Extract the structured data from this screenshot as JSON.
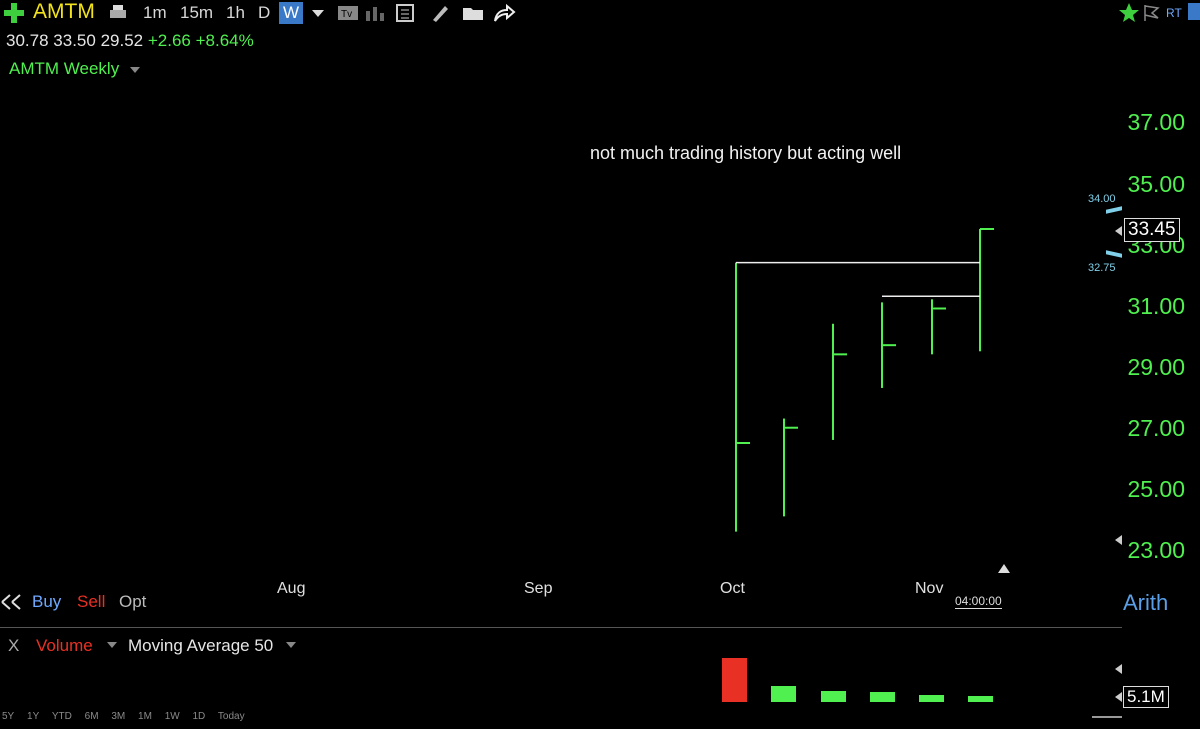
{
  "toolbar": {
    "add_icon": "plus-icon",
    "symbol": "AMTM",
    "timeframes": [
      "1m",
      "15m",
      "1h",
      "D",
      "W"
    ],
    "active_timeframe": "W",
    "rt_label": "RT"
  },
  "quote": {
    "open": "30.78",
    "high": "33.50",
    "low": "29.52",
    "change": "+2.66",
    "change_pct": "+8.64%"
  },
  "chart": {
    "title": "AMTM Weekly",
    "annotation": "not much trading history but acting well",
    "price_labels": [
      "37.00",
      "35.00",
      "33.00",
      "31.00",
      "29.00",
      "27.00",
      "25.00",
      "23.00"
    ],
    "last_price": "33.45",
    "upper_marker": "34.00",
    "lower_marker": "32.75",
    "months": [
      "Aug",
      "Sep",
      "Oct",
      "Nov"
    ],
    "countdown": "04:00:00",
    "scale_label": "Arith",
    "colors": {
      "up": "#4ff04f",
      "down": "#e83024",
      "ticker": "#f2e31c",
      "accent": "#3a78c8"
    }
  },
  "chart_data": {
    "type": "ohlc",
    "x": [
      "Oct wk1",
      "Oct wk2",
      "Oct wk3",
      "Oct wk4",
      "Nov wk1",
      "Nov wk2"
    ],
    "open": [
      null,
      null,
      null,
      null,
      null,
      null
    ],
    "high": [
      32.4,
      27.3,
      30.4,
      31.1,
      31.2,
      33.5
    ],
    "low": [
      23.6,
      24.1,
      26.6,
      28.3,
      29.4,
      29.5
    ],
    "close": [
      26.5,
      27.0,
      29.4,
      29.7,
      30.9,
      33.5
    ],
    "ylim": [
      23,
      37
    ]
  },
  "order": {
    "buy": "Buy",
    "sell": "Sell",
    "opt": "Opt"
  },
  "indicator": {
    "close_x": "X",
    "name": "Volume",
    "study": "Moving Average 50",
    "last_volume": "5.1M",
    "volumes": [
      {
        "value": 4.4,
        "color": "#e83024"
      },
      {
        "value": 1.6,
        "color": "#4ff04f"
      },
      {
        "value": 1.1,
        "color": "#4ff04f"
      },
      {
        "value": 1.0,
        "color": "#4ff04f"
      },
      {
        "value": 0.7,
        "color": "#4ff04f"
      },
      {
        "value": 0.6,
        "color": "#4ff04f"
      }
    ]
  },
  "ranges": [
    "5Y",
    "1Y",
    "YTD",
    "6M",
    "3M",
    "1M",
    "1W",
    "1D",
    "Today"
  ]
}
